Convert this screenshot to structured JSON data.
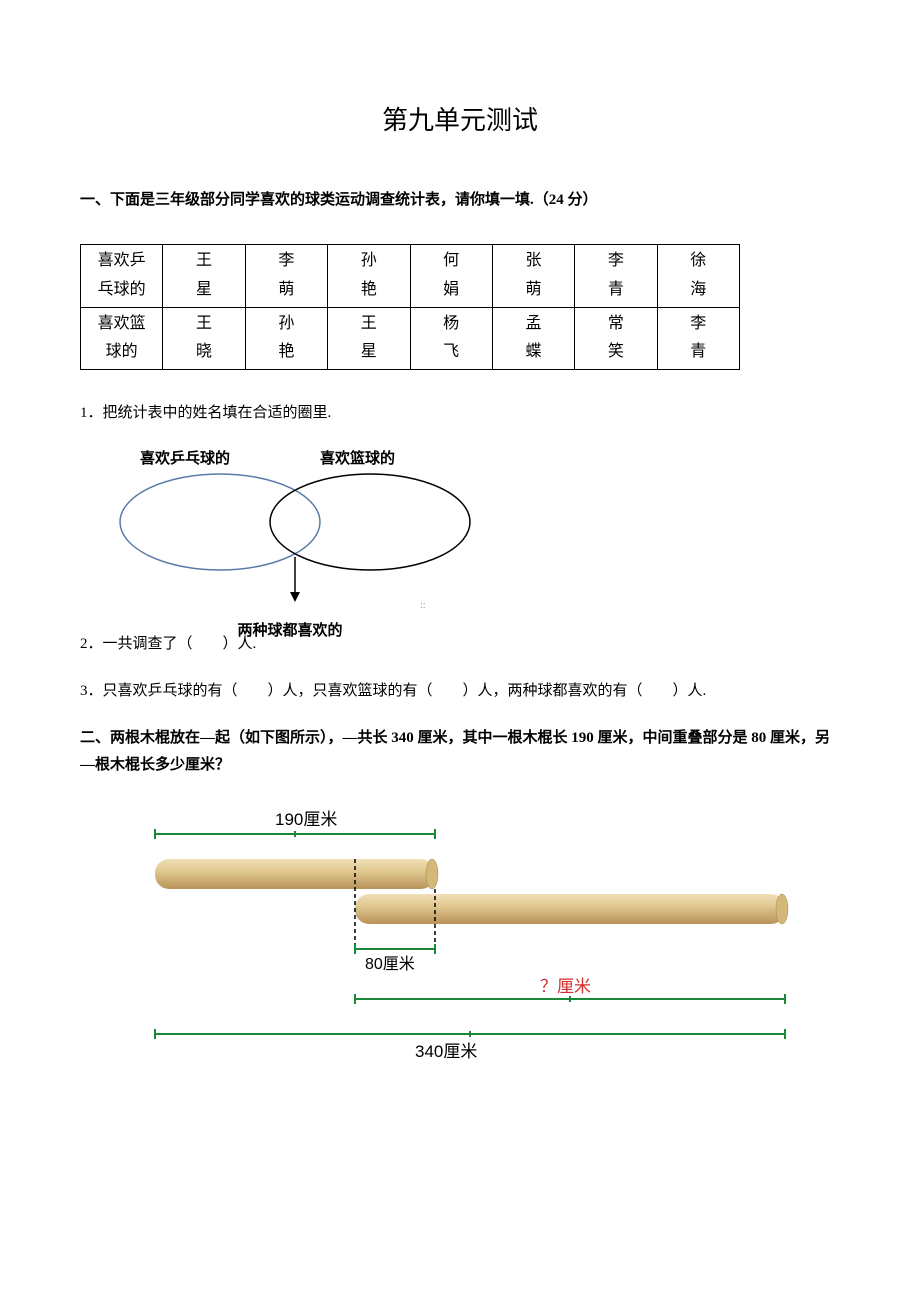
{
  "title": "第九单元测试",
  "section1": {
    "heading": "一、下面是三年级部分同学喜欢的球类运动调查统计表，请你填一填.（24 分）",
    "table": {
      "rows": [
        {
          "header": "喜欢乒乓球的",
          "cells": [
            "王星",
            "李萌",
            "孙艳",
            "何娟",
            "张萌",
            "李青",
            "徐海"
          ]
        },
        {
          "header": "喜欢篮球的",
          "cells": [
            "王晓",
            "孙艳",
            "王星",
            "杨飞",
            "孟蝶",
            "常笑",
            "李青"
          ]
        }
      ]
    },
    "q1": "1．把统计表中的姓名填在合适的圈里.",
    "venn": {
      "label_left": "喜欢乒乓球的",
      "label_right": "喜欢篮球的",
      "label_bottom": "两种球都喜欢的"
    },
    "q2": "2．一共调查了（　　）人.",
    "q3": "3．只喜欢乒乓球的有（　　）人，只喜欢篮球的有（　　）人，两种球都喜欢的有（　　）人."
  },
  "section2": {
    "heading": "二、两根木棍放在—起（如下图所示），—共长 340 厘米，其中一根木棍长 190 厘米，中间重叠部分是 80 厘米，另—根木棍长多少厘米？",
    "diagram": {
      "top_label": "190厘米",
      "overlap_label": "80厘米",
      "unknown_label": "？厘米",
      "total_label": "340厘米",
      "stick_color_light": "#e8d4a8",
      "stick_color_dark": "#c9a869",
      "stick_color_shadow": "#a88547",
      "line_color": "#1a8a3a",
      "total_line_color": "#1a8a3a"
    }
  }
}
